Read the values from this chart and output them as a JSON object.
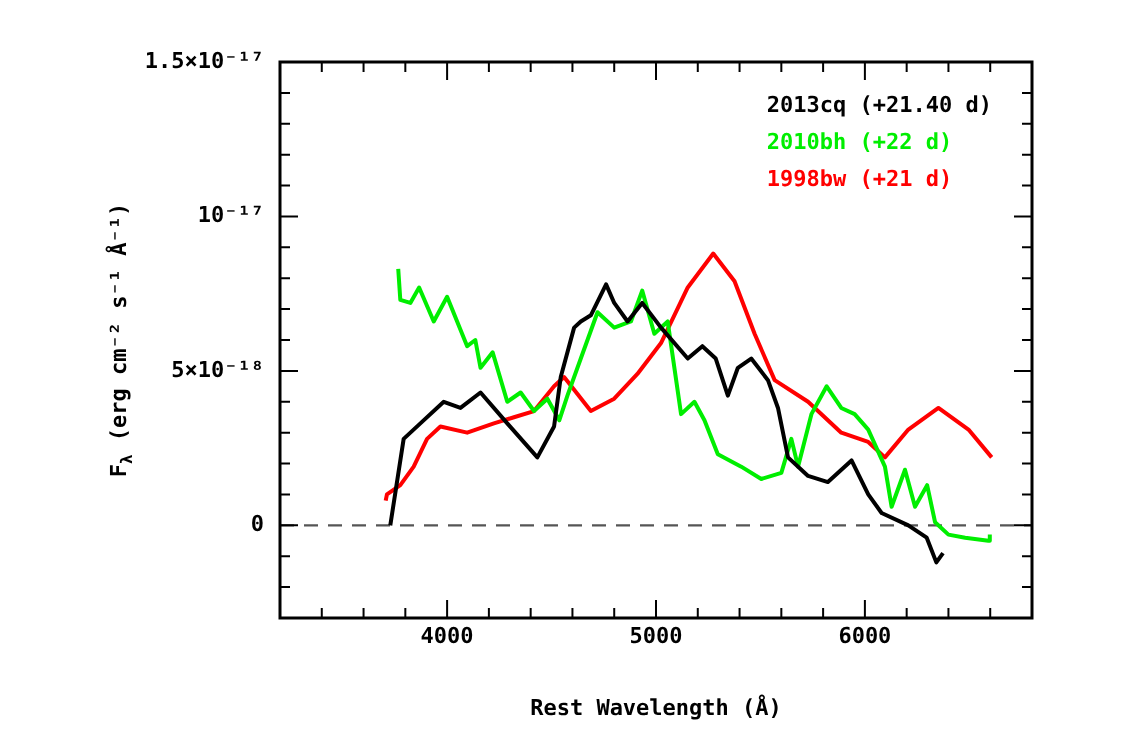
{
  "chart_data": {
    "type": "line",
    "xlabel": "Rest Wavelength (Å)",
    "ylabel": "F$_{λ}$ (erg cm⁻² s⁻¹ Å⁻¹)",
    "xlim": [
      3200,
      6800
    ],
    "xticks": [
      {
        "value": 3400,
        "label": null
      },
      {
        "value": 3600,
        "label": null
      },
      {
        "value": 3800,
        "label": null
      },
      4000,
      {
        "value": 4200,
        "label": null
      },
      {
        "value": 4400,
        "label": null
      },
      {
        "value": 4600,
        "label": null
      },
      {
        "value": 4800,
        "label": null
      },
      5000,
      {
        "value": 5200,
        "label": null
      },
      {
        "value": 5400,
        "label": null
      },
      {
        "value": 5600,
        "label": null
      },
      {
        "value": 5800,
        "label": null
      },
      6000,
      {
        "value": 6200,
        "label": null
      },
      {
        "value": 6400,
        "label": null
      },
      {
        "value": 6600,
        "label": null
      }
    ],
    "ylim": [
      -3e-18,
      1.5e-17
    ],
    "yticks": [
      {
        "value": -2e-18,
        "label": null
      },
      {
        "value": -1e-18,
        "label": null
      },
      0,
      {
        "value": 1e-18,
        "label": null
      },
      {
        "value": 2e-18,
        "label": null
      },
      {
        "value": 3e-18,
        "label": null
      },
      {
        "value": 4e-18,
        "label": null
      },
      {
        "value": 5e-18,
        "label": "5×10⁻¹⁸"
      },
      {
        "value": 6e-18,
        "label": null
      },
      {
        "value": 7e-18,
        "label": null
      },
      {
        "value": 8e-18,
        "label": null
      },
      {
        "value": 9e-18,
        "label": null
      },
      {
        "value": 1e-17,
        "label": "10⁻¹⁷"
      },
      {
        "value": 1.1e-17,
        "label": null
      },
      {
        "value": 1.2e-17,
        "label": null
      },
      {
        "value": 1.3e-17,
        "label": null
      },
      {
        "value": 1.4e-17,
        "label": null
      },
      {
        "value": 1.5e-17,
        "label": "1.5×10⁻¹⁷"
      }
    ],
    "legend": "top right",
    "marker": "none",
    "ref_lines": [
      {
        "axis": "y",
        "value": 0,
        "color": "#555555",
        "line_style": "dashed"
      }
    ],
    "series": [
      {
        "name": "2013cq (+21.40 d)",
        "color": "#000000",
        "x": [
          3728,
          3792,
          3872,
          3984,
          4064,
          4160,
          4288,
          4432,
          4512,
          4544,
          4608,
          4640,
          4688,
          4761,
          4800,
          4864,
          4934,
          5024,
          5152,
          5222,
          5286,
          5344,
          5392,
          5456,
          5536,
          5584,
          5632,
          5728,
          5823,
          5936,
          6016,
          6080,
          6208,
          6296,
          6342,
          6374
        ],
        "values": [
          0,
          2.8e-18,
          3.3e-18,
          4e-18,
          3.8e-18,
          4.3e-18,
          3.3e-18,
          2.2e-18,
          3.2e-18,
          4.8e-18,
          6.4e-18,
          6.6e-18,
          6.8e-18,
          7.8e-18,
          7.2e-18,
          6.6e-18,
          7.2e-18,
          6.4e-18,
          5.4e-18,
          5.8e-18,
          5.4e-18,
          4.2e-18,
          5.1e-18,
          5.4e-18,
          4.7e-18,
          3.8e-18,
          2.2e-18,
          1.6e-18,
          1.4e-18,
          2.1e-18,
          1e-18,
          4e-19,
          0,
          -4e-19,
          -1.2e-18,
          -9e-19
        ]
      },
      {
        "name": "2010bh (+22 d)",
        "color": "#00ee00",
        "x": [
          3766,
          3776,
          3824,
          3866,
          3936,
          4000,
          4096,
          4135,
          4160,
          4218,
          4288,
          4352,
          4416,
          4480,
          4537,
          4576,
          4640,
          4720,
          4800,
          4880,
          4934,
          4992,
          5056,
          5120,
          5184,
          5232,
          5296,
          5408,
          5504,
          5600,
          5648,
          5680,
          5744,
          5817,
          5887,
          5951,
          6016,
          6096,
          6128,
          6192,
          6240,
          6298,
          6336,
          6400,
          6480,
          6591,
          6598
        ],
        "values": [
          8.3e-18,
          7.3e-18,
          7.2e-18,
          7.7e-18,
          6.6e-18,
          7.4e-18,
          5.8e-18,
          6e-18,
          5.1e-18,
          5.6e-18,
          4e-18,
          4.3e-18,
          3.7e-18,
          4.1e-18,
          3.4e-18,
          4.2e-18,
          5.4e-18,
          6.9e-18,
          6.4e-18,
          6.6e-18,
          7.6e-18,
          6.2e-18,
          6.6e-18,
          3.6e-18,
          4e-18,
          3.4e-18,
          2.3e-18,
          1.9e-18,
          1.5e-18,
          1.7e-18,
          2.8e-18,
          1.9e-18,
          3.6e-18,
          4.5e-18,
          3.8e-18,
          3.6e-18,
          3.1e-18,
          1.9e-18,
          6e-19,
          1.8e-18,
          6e-19,
          1.3e-18,
          1e-19,
          -3e-19,
          -4e-19,
          -5e-19,
          -3e-19
        ]
      },
      {
        "name": "1998bw (+21 d)",
        "color": "#ff0000",
        "x": [
          3706,
          3712,
          3776,
          3840,
          3904,
          3968,
          4096,
          4224,
          4320,
          4416,
          4512,
          4560,
          4688,
          4800,
          4911,
          5024,
          5152,
          5274,
          5376,
          5472,
          5568,
          5728,
          5887,
          6016,
          6096,
          6208,
          6352,
          6496,
          6607
        ],
        "values": [
          8e-19,
          1e-18,
          1.3e-18,
          1.9e-18,
          2.8e-18,
          3.2e-18,
          3e-18,
          3.3e-18,
          3.5e-18,
          3.7e-18,
          4.5e-18,
          4.8e-18,
          3.7e-18,
          4.1e-18,
          4.9e-18,
          5.9e-18,
          7.7e-18,
          8.8e-18,
          7.9e-18,
          6.2e-18,
          4.7e-18,
          4e-18,
          3e-18,
          2.7e-18,
          2.2e-18,
          3.1e-18,
          3.8e-18,
          3.1e-18,
          2.2e-18
        ]
      }
    ]
  }
}
